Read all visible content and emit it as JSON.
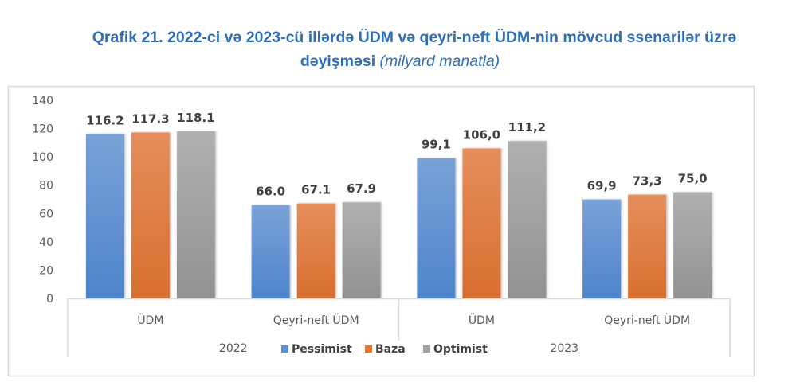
{
  "title": {
    "main_line1": "Qrafik 21. 2022-ci və 2023-cü illərdə ÜDM və qeyri-neft ÜDM-nin mövcud ssenarilər üzrə",
    "main_line2": "dəyişməsi",
    "unit": "(milyard manatla)"
  },
  "colors": {
    "title": "#2f6db5",
    "Pessimist": "#5b8fd1",
    "Baza": "#e0763a",
    "Optimist": "#a2a2a2"
  },
  "chart_data": {
    "type": "bar",
    "title": "Qrafik 21. 2022-ci və 2023-cü illərdə ÜDM və qeyri-neft ÜDM-nin mövcud ssenarilər üzrə dəyişməsi (milyard manatla)",
    "xlabel": "",
    "ylabel": "",
    "ylim": [
      0,
      140
    ],
    "yticks": [
      "0",
      "20",
      "40",
      "60",
      "80",
      "100",
      "120",
      "140"
    ],
    "grid": false,
    "legend_position": "bottom",
    "groups": [
      "2022",
      "2023"
    ],
    "categories": [
      "ÜDM",
      "Qeyri-neft ÜDM",
      "ÜDM",
      "Qeyri-neft ÜDM"
    ],
    "category_group": [
      "2022",
      "2022",
      "2023",
      "2023"
    ],
    "series": [
      {
        "name": "Pessimist",
        "values": [
          116.2,
          66.0,
          99.1,
          69.9
        ],
        "labels": [
          "116.2",
          "66.0",
          "99,1",
          "69,9"
        ]
      },
      {
        "name": "Baza",
        "values": [
          117.3,
          67.1,
          106.0,
          73.3
        ],
        "labels": [
          "117.3",
          "67.1",
          "106,0",
          "73,3"
        ]
      },
      {
        "name": "Optimist",
        "values": [
          118.1,
          67.9,
          111.2,
          75.0
        ],
        "labels": [
          "118.1",
          "67.9",
          "111,2",
          "75,0"
        ]
      }
    ]
  }
}
